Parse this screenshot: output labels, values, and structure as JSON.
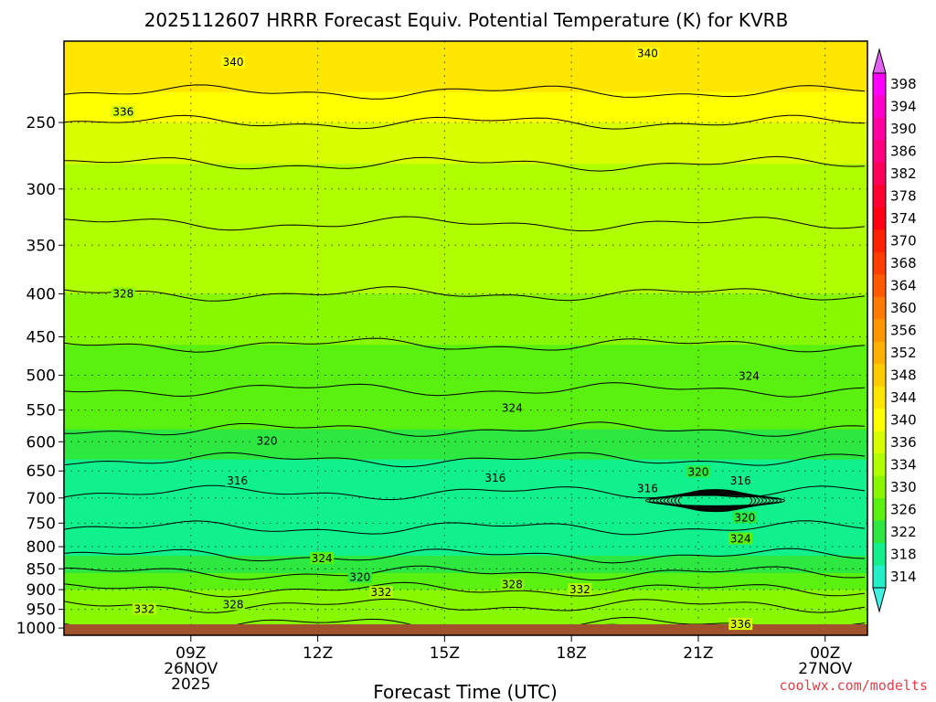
{
  "chart_data": {
    "type": "heatmap",
    "title": "2025112607 HRRR Forecast Equiv. Potential Temperature (K) for KVRB",
    "xlabel": "Forecast Time (UTC)",
    "ylabel": "",
    "watermark": "coolwx.com/modelts",
    "x_ticks": [
      {
        "label": "09Z",
        "sub": [
          "26NOV",
          "2025"
        ],
        "hour": 9
      },
      {
        "label": "12Z",
        "sub": [],
        "hour": 12
      },
      {
        "label": "15Z",
        "sub": [],
        "hour": 15
      },
      {
        "label": "18Z",
        "sub": [],
        "hour": 18
      },
      {
        "label": "21Z",
        "sub": [],
        "hour": 21
      },
      {
        "label": "00Z",
        "sub": [
          "27NOV"
        ],
        "hour": 24
      }
    ],
    "xlim_hours": [
      6,
      25
    ],
    "y_ticks": [
      "250",
      "300",
      "350",
      "400",
      "450",
      "500",
      "550",
      "600",
      "650",
      "700",
      "750",
      "800",
      "850",
      "900",
      "950",
      "1000"
    ],
    "ylim_hpa": [
      1020,
      200
    ],
    "grid": true,
    "colorbar": {
      "labels": [
        "398",
        "394",
        "390",
        "386",
        "382",
        "378",
        "374",
        "370",
        "368",
        "364",
        "360",
        "356",
        "352",
        "348",
        "344",
        "340",
        "336",
        "334",
        "330",
        "326",
        "322",
        "318",
        "314"
      ],
      "colors": [
        "#ff00ff",
        "#ff00cc",
        "#ff00a0",
        "#ff0080",
        "#ff0058",
        "#ff0030",
        "#ff0010",
        "#ff2200",
        "#ff3c00",
        "#ff5a00",
        "#ff7a00",
        "#ff9600",
        "#ffb000",
        "#ffcc00",
        "#ffe600",
        "#ffff00",
        "#d8ff00",
        "#b0ff00",
        "#88f800",
        "#5af010",
        "#2ce840",
        "#10f08c",
        "#22f0c8"
      ],
      "arrow_top_color": "#e060f0",
      "arrow_bottom_color": "#40f0e0"
    },
    "surface_color": "#a0522d",
    "contour_labels": [
      "340",
      "340",
      "336",
      "328",
      "324",
      "324",
      "320",
      "316",
      "316",
      "316",
      "320",
      "316",
      "320",
      "324",
      "324",
      "320",
      "328",
      "332",
      "332",
      "328",
      "332",
      "336"
    ],
    "bands": [
      {
        "p": 200,
        "theta": 342
      },
      {
        "p": 230,
        "theta": 339
      },
      {
        "p": 250,
        "theta": 336
      },
      {
        "p": 280,
        "theta": 334
      },
      {
        "p": 330,
        "theta": 332
      },
      {
        "p": 400,
        "theta": 329
      },
      {
        "p": 460,
        "theta": 327
      },
      {
        "p": 520,
        "theta": 325
      },
      {
        "p": 580,
        "theta": 322
      },
      {
        "p": 630,
        "theta": 319
      },
      {
        "p": 690,
        "theta": 316
      },
      {
        "p": 760,
        "theta": 318
      },
      {
        "p": 820,
        "theta": 322
      },
      {
        "p": 860,
        "theta": 325
      },
      {
        "p": 900,
        "theta": 328
      },
      {
        "p": 940,
        "theta": 331
      },
      {
        "p": 990,
        "theta": 334
      },
      {
        "p": 1010,
        "theta": 336
      }
    ]
  }
}
